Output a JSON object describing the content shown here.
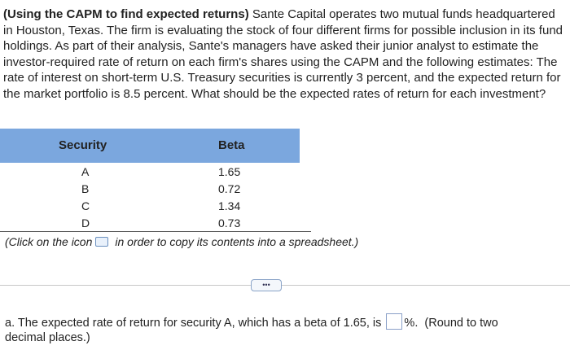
{
  "problem": {
    "title": "(Using the CAPM to find expected returns)",
    "text": "Sante Capital operates two mutual funds headquartered in Houston, Texas. The firm is evaluating the stock of four different firms for possible inclusion in its fund holdings. As part of their analysis, Sante's managers have asked their junior analyst to estimate the investor-required rate of return on each firm's shares using the CAPM and the following estimates: The rate of interest on short-term U.S. Treasury securities is currently 3 percent, and the expected return for the market portfolio is 8.5 percent. What should be the expected rates of return for each investment?"
  },
  "table": {
    "headers": [
      "Security",
      "Beta"
    ],
    "rows": [
      [
        "A",
        1.65
      ],
      [
        "B",
        0.72
      ],
      [
        "C",
        1.34
      ],
      [
        "D",
        0.73
      ]
    ]
  },
  "note": {
    "before": "(Click on the icon",
    "after": "in order to copy its contents into a spreadsheet.)"
  },
  "question": {
    "before": "a. The expected rate of return for security A, which has a beta of 1.65, is",
    "unit": "%.",
    "after": "(Round to two decimal places.)"
  }
}
